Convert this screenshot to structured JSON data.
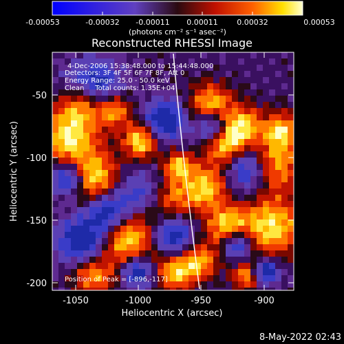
{
  "colorbar": {
    "tick_labels": [
      "-0.00053",
      "-0.00032",
      "-0.00011",
      "0.00011",
      "0.00032",
      "0.00053"
    ],
    "unit_label": "(photons cm⁻² s⁻¹ asec⁻²)"
  },
  "title": "Reconstructed RHESSI Image",
  "info": {
    "line1": "4-Dec-2006 15:38:48.000 to 15:44:48.000",
    "line2": "Detectors: 3F 4F 5F 6F 7F 8F, Att 0",
    "line3": "Energy Range: 25.0 - 50.0 keV",
    "line4": "Clean     Total counts: 1.35E+04"
  },
  "peak_label": "Position of Peak = [-896,-117]",
  "axes": {
    "xlabel": "Heliocentric X (arcsec)",
    "ylabel": "Heliocentric Y (arcsec)",
    "x_ticks": [
      "-1050",
      "-1000",
      "-950",
      "-900"
    ],
    "y_ticks": [
      "-50",
      "-100",
      "-150",
      "-200"
    ]
  },
  "timestamp": "8-May-2022 02:43",
  "colors": {
    "background": "#000000",
    "limb_line": "#ffffff",
    "text": "#ffffff"
  }
}
